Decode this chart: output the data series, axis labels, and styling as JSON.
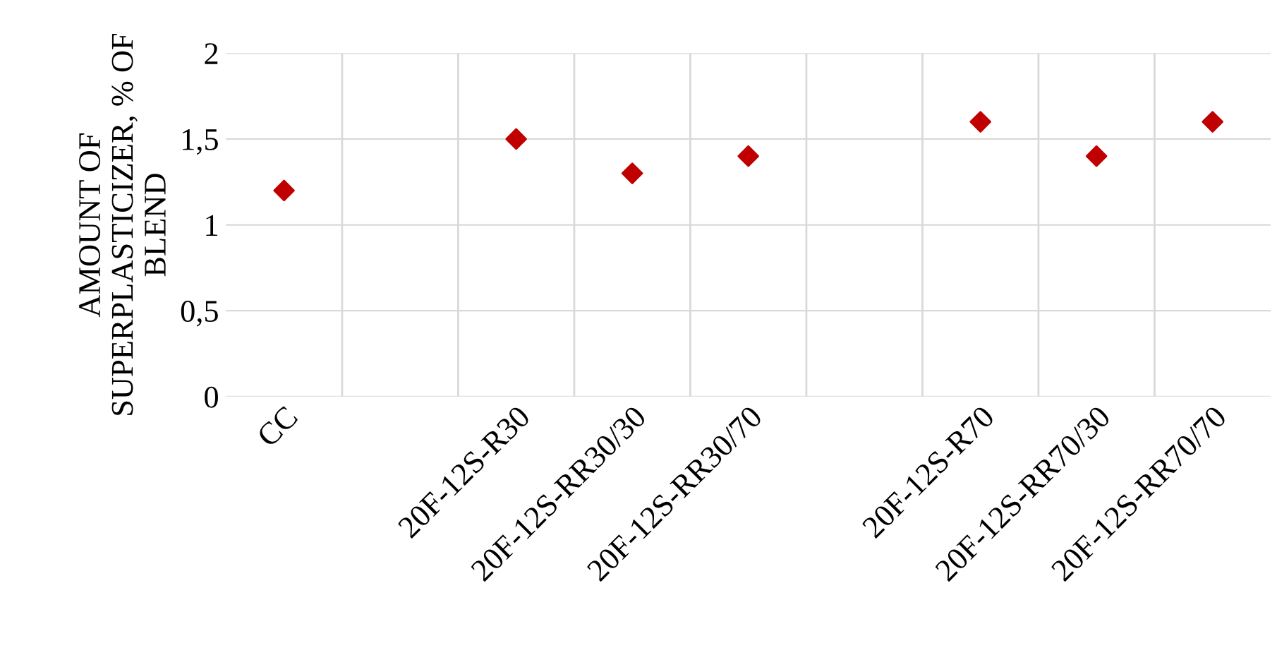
{
  "chart_data": {
    "type": "scatter",
    "ylabel": "AMOUNT OF SUPERPLASTICIZER, % OF BLEND",
    "categories": [
      "CC",
      null,
      "20F-12S-R30",
      "20F-12S-RR30/30",
      "20F-12S-RR30/70",
      null,
      "20F-12S-R70",
      "20F-12S-RR70/30",
      "20F-12S-RR70/70"
    ],
    "values": [
      1.2,
      null,
      1.5,
      1.3,
      1.4,
      null,
      1.6,
      1.4,
      1.6
    ],
    "color": "#c00000",
    "marker": "diamond",
    "ylim": [
      0,
      2
    ],
    "yticks": [
      0,
      {
        "value": 0.5,
        "label": "0,5"
      },
      1,
      {
        "value": 1.5,
        "label": "1,5"
      },
      2
    ],
    "grid": true
  }
}
